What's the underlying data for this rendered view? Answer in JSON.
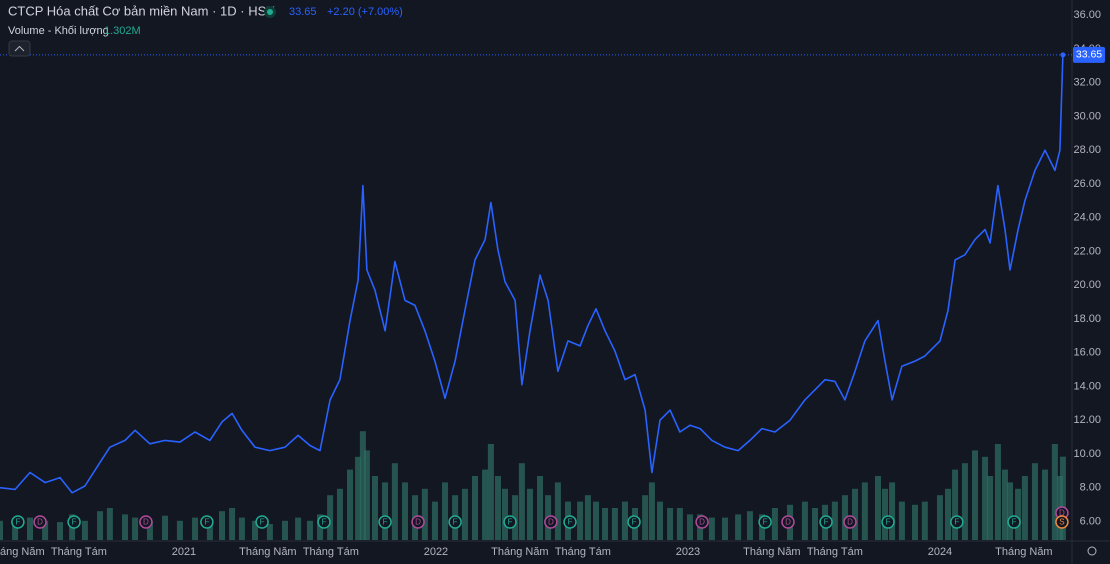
{
  "chart_data": {
    "type": "line",
    "title": "CTCP Hóa chất Cơ bản miền Nam · 1D · HSX",
    "change": "+2.20 (+7.00%)",
    "color": "#2962ff",
    "xlim": [
      2020.27,
      2024.524
    ],
    "xticks": [
      {
        "value": 2020.333,
        "label": "Tháng Năm"
      },
      {
        "value": 2020.583,
        "label": "Tháng Tám"
      },
      2021,
      {
        "value": 2021.333,
        "label": "Tháng Năm"
      },
      {
        "value": 2021.583,
        "label": "Tháng Tám"
      },
      2022,
      {
        "value": 2022.333,
        "label": "Tháng Năm"
      },
      {
        "value": 2022.583,
        "label": "Tháng Tám"
      },
      2023,
      {
        "value": 2023.333,
        "label": "Tháng Năm"
      },
      {
        "value": 2023.583,
        "label": "Tháng Tám"
      },
      2024,
      {
        "value": 2024.333,
        "label": "Tháng Năm"
      }
    ],
    "ylim": [
      4.9,
      36.9
    ],
    "yticks": [
      {
        "value": 6,
        "label": "6.00"
      },
      {
        "value": 8,
        "label": "8.00"
      },
      {
        "value": 10,
        "label": "10.00"
      },
      {
        "value": 12,
        "label": "12.00"
      },
      {
        "value": 14,
        "label": "14.00"
      },
      {
        "value": 16,
        "label": "16.00"
      },
      {
        "value": 18,
        "label": "18.00"
      },
      {
        "value": 20,
        "label": "20.00"
      },
      {
        "value": 22,
        "label": "22.00"
      },
      {
        "value": 24,
        "label": "24.00"
      },
      {
        "value": 26,
        "label": "26.00"
      },
      {
        "value": 28,
        "label": "28.00"
      },
      {
        "value": 30,
        "label": "30.00"
      },
      {
        "value": 32,
        "label": "32.00"
      },
      {
        "value": 34,
        "label": "34.00"
      },
      {
        "value": 36,
        "label": "36.00"
      }
    ],
    "grid": false,
    "x": [
      2020.27,
      2020.33,
      2020.389,
      2020.449,
      2020.508,
      2020.556,
      2020.607,
      2020.667,
      2020.706,
      2020.766,
      2020.806,
      2020.865,
      2020.925,
      2020.984,
      2021.044,
      2021.103,
      2021.151,
      2021.191,
      2021.23,
      2021.282,
      2021.341,
      2021.401,
      2021.453,
      2021.5,
      2021.54,
      2021.58,
      2021.619,
      2021.659,
      2021.691,
      2021.71,
      2021.726,
      2021.758,
      2021.798,
      2021.837,
      2021.877,
      2021.917,
      2021.956,
      2021.996,
      2022.036,
      2022.076,
      2022.115,
      2022.155,
      2022.195,
      2022.218,
      2022.246,
      2022.274,
      2022.314,
      2022.341,
      2022.373,
      2022.413,
      2022.445,
      2022.484,
      2022.524,
      2022.572,
      2022.603,
      2022.635,
      2022.671,
      2022.71,
      2022.75,
      2022.79,
      2022.83,
      2022.857,
      2022.889,
      2022.929,
      2022.968,
      2023.008,
      2023.048,
      2023.095,
      2023.147,
      2023.199,
      2023.246,
      2023.294,
      2023.345,
      2023.405,
      2023.464,
      2023.504,
      2023.544,
      2023.583,
      2023.623,
      2023.663,
      2023.702,
      2023.754,
      2023.782,
      2023.81,
      2023.849,
      2023.901,
      2023.94,
      2024.0,
      2024.032,
      2024.06,
      2024.099,
      2024.139,
      2024.179,
      2024.199,
      2024.23,
      2024.258,
      2024.278,
      2024.31,
      2024.337,
      2024.377,
      2024.417,
      2024.456,
      2024.476,
      2024.488
    ],
    "values": [
      8.0,
      7.9,
      8.9,
      8.3,
      8.6,
      7.7,
      8.1,
      9.5,
      10.4,
      10.8,
      11.4,
      10.6,
      10.8,
      10.7,
      11.3,
      10.8,
      11.9,
      12.4,
      11.4,
      10.4,
      10.2,
      10.4,
      11.1,
      10.5,
      10.2,
      13.2,
      14.4,
      17.9,
      20.3,
      25.9,
      20.9,
      19.7,
      17.3,
      21.4,
      19.1,
      18.8,
      17.3,
      15.5,
      13.3,
      15.5,
      18.5,
      21.5,
      22.7,
      24.9,
      22.1,
      20.2,
      19.1,
      14.1,
      17.3,
      20.6,
      19.1,
      14.9,
      16.7,
      16.4,
      17.6,
      18.6,
      17.3,
      16.1,
      14.4,
      14.7,
      12.6,
      8.9,
      12.0,
      12.6,
      11.3,
      11.7,
      11.5,
      10.8,
      10.4,
      10.2,
      10.8,
      11.5,
      11.3,
      12.0,
      13.2,
      13.8,
      14.4,
      14.3,
      13.2,
      14.9,
      16.7,
      17.9,
      15.5,
      13.2,
      15.2,
      15.5,
      15.8,
      16.7,
      18.5,
      21.5,
      21.8,
      22.7,
      23.3,
      22.5,
      25.9,
      23.3,
      20.9,
      23.3,
      25.0,
      26.8,
      28.0,
      26.8,
      28.0,
      33.65
    ],
    "volume": {
      "name": "Volume - Khối lượng",
      "value_label": "1.302M",
      "color": "#2e6b60",
      "vlim": [
        0,
        2.0
      ],
      "values": [
        0.3,
        0.25,
        0.35,
        0.3,
        0.28,
        0.4,
        0.3,
        0.45,
        0.5,
        0.4,
        0.35,
        0.3,
        0.38,
        0.3,
        0.35,
        0.3,
        0.45,
        0.5,
        0.35,
        0.3,
        0.25,
        0.3,
        0.35,
        0.3,
        0.4,
        0.7,
        0.8,
        1.1,
        1.3,
        1.7,
        1.4,
        1.0,
        0.9,
        1.2,
        0.9,
        0.7,
        0.8,
        0.6,
        0.9,
        0.7,
        0.8,
        1.0,
        1.1,
        1.5,
        1.0,
        0.8,
        0.7,
        1.2,
        0.8,
        1.0,
        0.7,
        0.9,
        0.6,
        0.6,
        0.7,
        0.6,
        0.5,
        0.5,
        0.6,
        0.5,
        0.7,
        0.9,
        0.6,
        0.5,
        0.5,
        0.4,
        0.4,
        0.35,
        0.35,
        0.4,
        0.45,
        0.4,
        0.5,
        0.55,
        0.6,
        0.5,
        0.55,
        0.6,
        0.7,
        0.8,
        0.9,
        1.0,
        0.8,
        0.9,
        0.6,
        0.55,
        0.6,
        0.7,
        0.8,
        1.1,
        1.2,
        1.4,
        1.3,
        1.0,
        1.5,
        1.1,
        0.9,
        0.8,
        1.0,
        1.2,
        1.1,
        1.5,
        1.0,
        1.302
      ]
    },
    "event_colors": {
      "F": "#22ab94",
      "D": "#b04a9a",
      "S": "#f0883e"
    },
    "events": [
      {
        "x": 2020.341,
        "label": "F"
      },
      {
        "x": 2020.429,
        "label": "D"
      },
      {
        "x": 2020.564,
        "label": "F"
      },
      {
        "x": 2020.849,
        "label": "D"
      },
      {
        "x": 2021.091,
        "label": "F"
      },
      {
        "x": 2021.31,
        "label": "F"
      },
      {
        "x": 2021.556,
        "label": "F"
      },
      {
        "x": 2021.798,
        "label": "F"
      },
      {
        "x": 2021.929,
        "label": "D"
      },
      {
        "x": 2022.076,
        "label": "F"
      },
      {
        "x": 2022.294,
        "label": "F"
      },
      {
        "x": 2022.456,
        "label": "D"
      },
      {
        "x": 2022.532,
        "label": "F"
      },
      {
        "x": 2022.786,
        "label": "F"
      },
      {
        "x": 2023.056,
        "label": "D"
      },
      {
        "x": 2023.306,
        "label": "F"
      },
      {
        "x": 2023.397,
        "label": "D"
      },
      {
        "x": 2023.548,
        "label": "F"
      },
      {
        "x": 2023.643,
        "label": "D"
      },
      {
        "x": 2023.794,
        "label": "F"
      },
      {
        "x": 2024.067,
        "label": "F"
      },
      {
        "x": 2024.294,
        "label": "F"
      },
      {
        "x": 2024.484,
        "label": "D"
      },
      {
        "x": 2024.484,
        "label": "S"
      }
    ]
  }
}
